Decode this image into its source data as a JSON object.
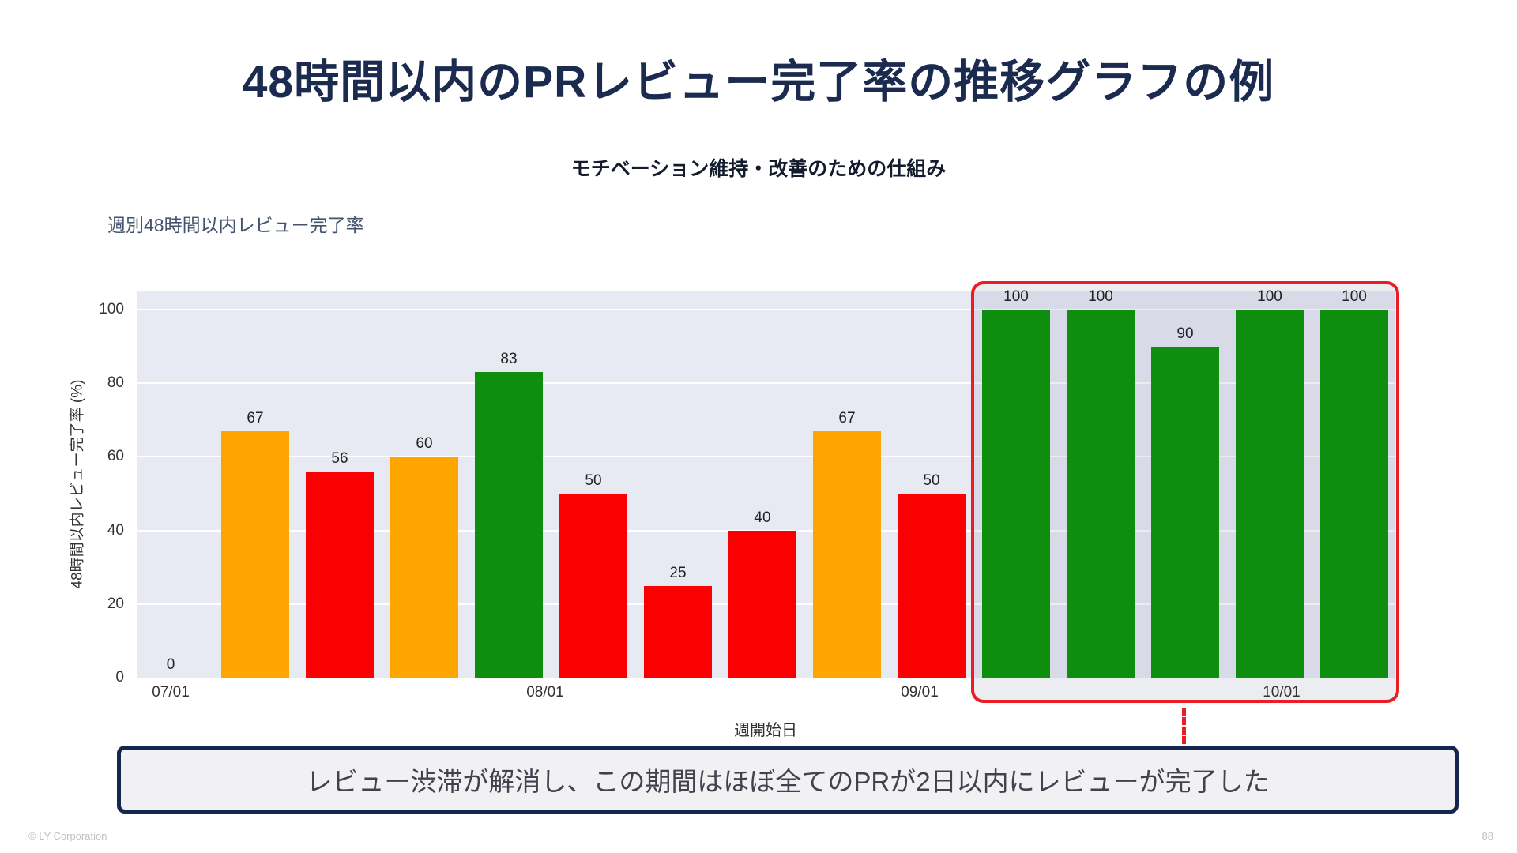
{
  "slide": {
    "title": "48時間以内のPRレビュー完了率の推移グラフの例",
    "subtitle": "モチベーション維持・改善のための仕組み",
    "callout": "レビュー渋滞が解消し、この期間はほぼ全てのPRが2日以内にレビューが完了した",
    "footer_left": "© LY Corporation",
    "page_number": "88"
  },
  "chart_data": {
    "type": "bar",
    "title": "週別48時間以内レビュー完了率",
    "xlabel": "週開始日",
    "ylabel": "48時間以内レビュー完了率 (%)",
    "ylim": [
      0,
      100
    ],
    "yticks": [
      0,
      20,
      40,
      60,
      80,
      100
    ],
    "grid": true,
    "legend": false,
    "plot_bg": "#e7eaf3",
    "x_tick_labels": [
      {
        "label": "07/01",
        "bar_pos": 0
      },
      {
        "label": "08/01",
        "bar_pos": 4.43
      },
      {
        "label": "09/01",
        "bar_pos": 8.86
      },
      {
        "label": "10/01",
        "bar_pos": 13.14
      }
    ],
    "bars": [
      {
        "value": 0,
        "color": "none"
      },
      {
        "value": 67,
        "color": "orange"
      },
      {
        "value": 56,
        "color": "red"
      },
      {
        "value": 60,
        "color": "orange"
      },
      {
        "value": 83,
        "color": "green"
      },
      {
        "value": 50,
        "color": "red"
      },
      {
        "value": 25,
        "color": "red"
      },
      {
        "value": 40,
        "color": "red"
      },
      {
        "value": 67,
        "color": "orange"
      },
      {
        "value": 50,
        "color": "red"
      },
      {
        "value": 100,
        "color": "green"
      },
      {
        "value": 100,
        "color": "green"
      },
      {
        "value": 90,
        "color": "green"
      },
      {
        "value": 100,
        "color": "green"
      },
      {
        "value": 100,
        "color": "green"
      }
    ],
    "color_map": {
      "green": "#0e8e0e",
      "orange": "#ffa500",
      "red": "#fa0000"
    },
    "highlight": {
      "from_bar": 10,
      "to_bar": 14,
      "border_color": "#ec1c24",
      "fill": "rgba(150,155,175,0.18)"
    }
  }
}
